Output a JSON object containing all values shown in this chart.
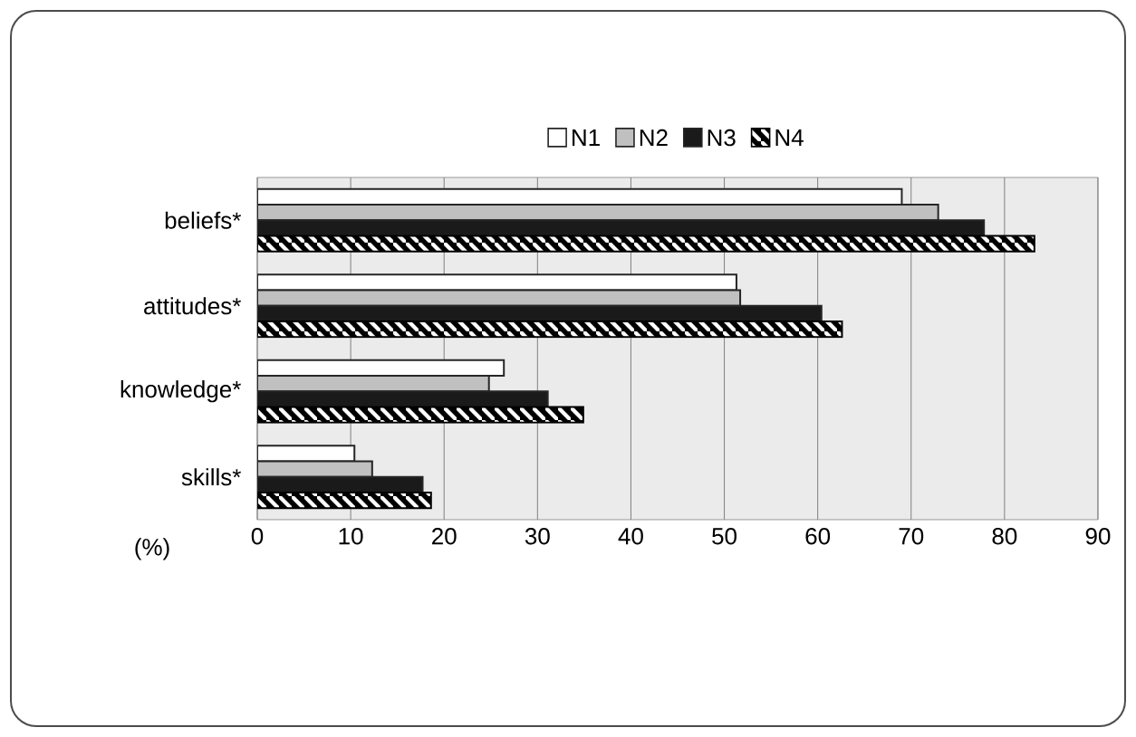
{
  "chart_data": {
    "type": "bar",
    "orientation": "horizontal",
    "categories": [
      "beliefs*",
      "attitudes*",
      "knowledge*",
      "skills*"
    ],
    "series": [
      {
        "name": "N1",
        "color": "#ffffff",
        "values": [
          69.0,
          51.3,
          26.4,
          10.4
        ]
      },
      {
        "name": "N2",
        "color": "#c0c0c0",
        "values": [
          72.9,
          51.7,
          24.8,
          12.3
        ]
      },
      {
        "name": "N3",
        "color": "#1a1a1a",
        "values": [
          77.8,
          60.4,
          31.1,
          17.7
        ]
      },
      {
        "name": "N4",
        "color": "#000000",
        "values": [
          83.2,
          62.6,
          34.9,
          18.6
        ]
      }
    ],
    "xlabel": "(%)",
    "xlim": [
      0,
      90
    ],
    "xticks": [
      0,
      10,
      20,
      30,
      40,
      50,
      60,
      70,
      80,
      90
    ],
    "grid": "x",
    "legend": "top"
  }
}
